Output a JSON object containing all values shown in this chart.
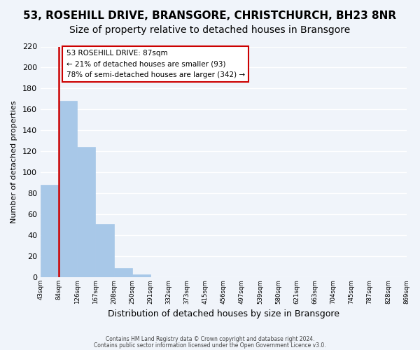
{
  "title": "53, ROSEHILL DRIVE, BRANSGORE, CHRISTCHURCH, BH23 8NR",
  "subtitle": "Size of property relative to detached houses in Bransgore",
  "xlabel": "Distribution of detached houses by size in Bransgore",
  "ylabel": "Number of detached properties",
  "bar_values": [
    88,
    168,
    124,
    51,
    9,
    3,
    0,
    0,
    0,
    0,
    0,
    0,
    0,
    0,
    0,
    0,
    0,
    0,
    0,
    0
  ],
  "bin_labels": [
    "43sqm",
    "84sqm",
    "126sqm",
    "167sqm",
    "208sqm",
    "250sqm",
    "291sqm",
    "332sqm",
    "373sqm",
    "415sqm",
    "456sqm",
    "497sqm",
    "539sqm",
    "580sqm",
    "621sqm",
    "663sqm",
    "704sqm",
    "745sqm",
    "787sqm",
    "828sqm",
    "869sqm"
  ],
  "bar_color": "#a8c8e8",
  "annotation_title": "53 ROSEHILL DRIVE: 87sqm",
  "annotation_line1": "← 21% of detached houses are smaller (93)",
  "annotation_line2": "78% of semi-detached houses are larger (342) →",
  "annotation_box_color": "#ffffff",
  "annotation_box_edge": "#cc0000",
  "vline_color": "#cc0000",
  "ylim": [
    0,
    220
  ],
  "yticks": [
    0,
    20,
    40,
    60,
    80,
    100,
    120,
    140,
    160,
    180,
    200,
    220
  ],
  "footer1": "Contains HM Land Registry data © Crown copyright and database right 2024.",
  "footer2": "Contains public sector information licensed under the Open Government Licence v3.0.",
  "bg_color": "#f0f4fa",
  "grid_color": "#ffffff",
  "title_fontsize": 11,
  "subtitle_fontsize": 10,
  "num_bins": 20
}
